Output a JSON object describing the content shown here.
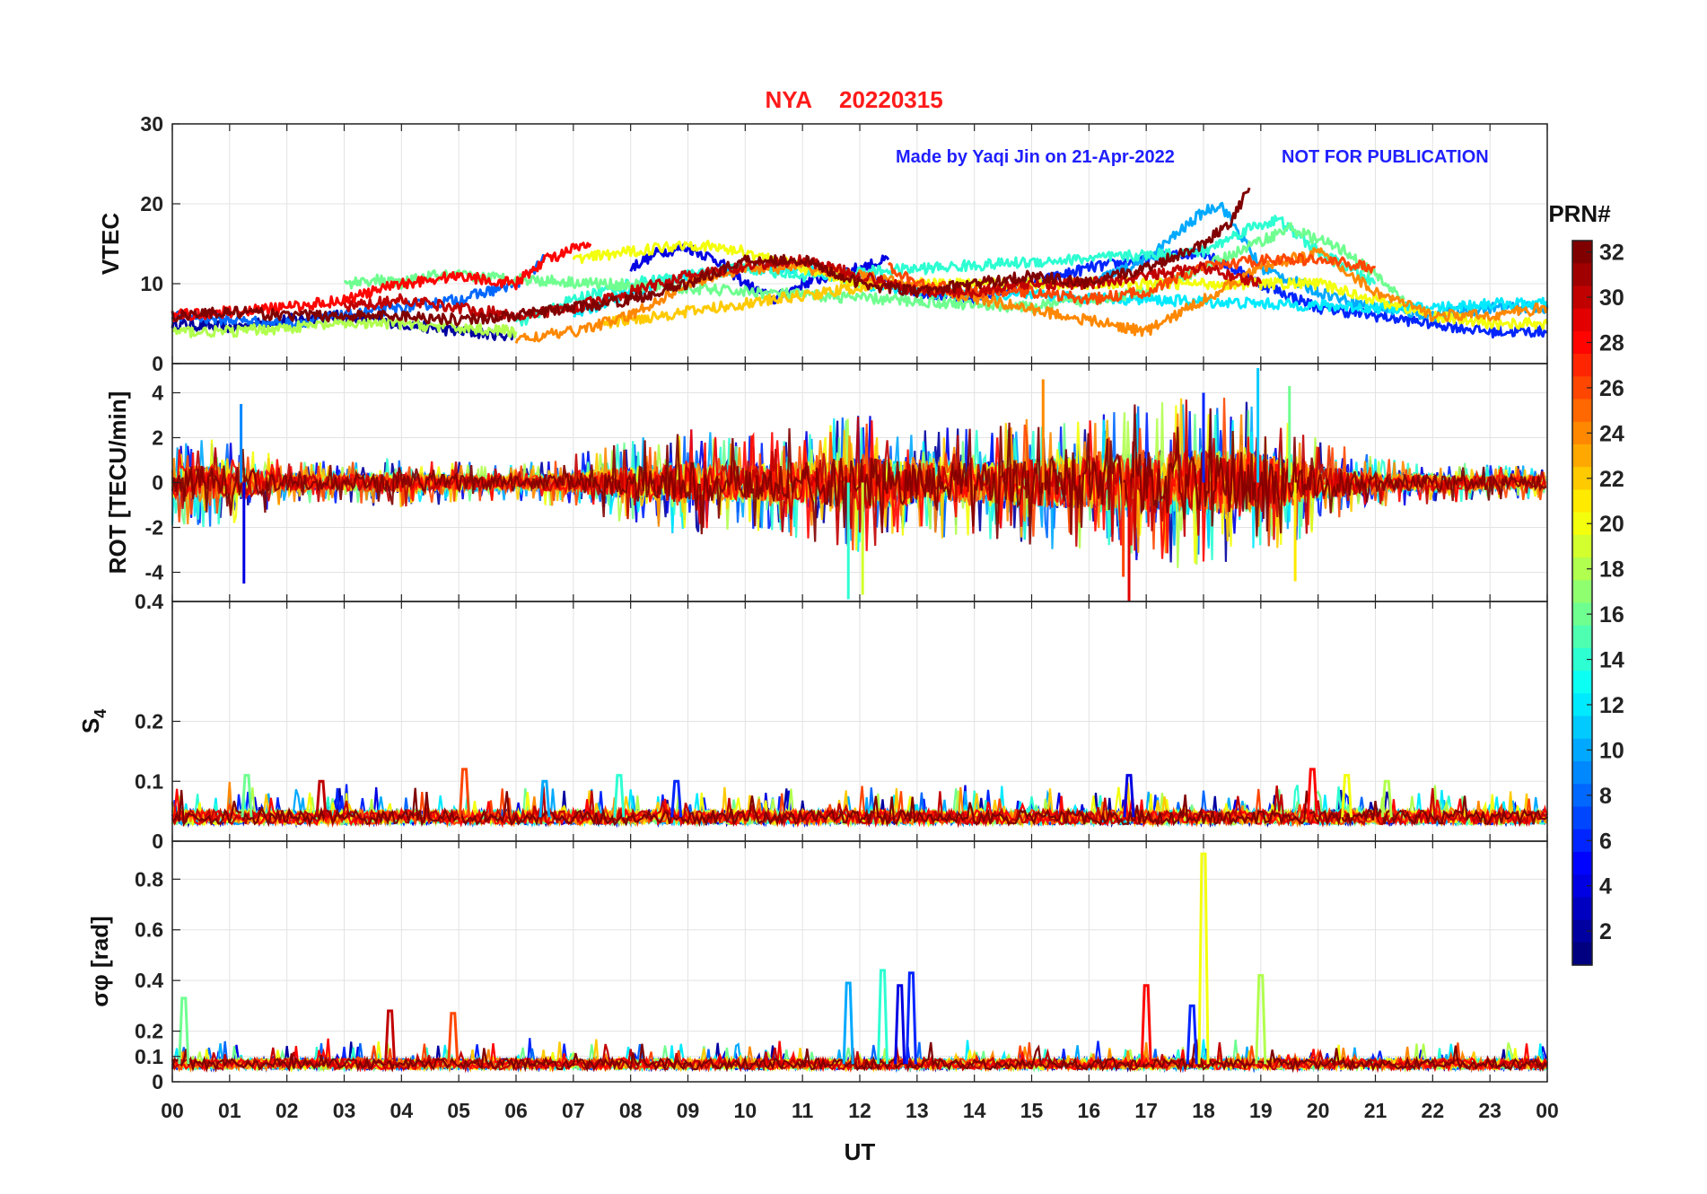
{
  "figure": {
    "title_station": "NYA",
    "title_date": "20220315",
    "title_color": "#ff1a1a",
    "credit": "Made by Yaqi Jin on 21-Apr-2022",
    "notice": "NOT FOR PUBLICATION",
    "credit_color": "#1f1fff",
    "xlabel": "UT",
    "x_tick_labels": [
      "00",
      "01",
      "02",
      "03",
      "04",
      "05",
      "06",
      "07",
      "08",
      "09",
      "10",
      "11",
      "12",
      "13",
      "14",
      "15",
      "16",
      "17",
      "18",
      "19",
      "20",
      "21",
      "22",
      "23",
      "00"
    ]
  },
  "colorbar": {
    "label": "PRN#",
    "range": [
      1,
      32
    ],
    "tick_values": [
      2,
      4,
      6,
      8,
      10,
      12,
      14,
      16,
      18,
      20,
      22,
      24,
      26,
      28,
      30,
      32
    ],
    "tick_labels": [
      "2",
      "4",
      "6",
      "8",
      "10",
      "12",
      "14",
      "16",
      "18",
      "20",
      "22",
      "24",
      "26",
      "28",
      "30",
      "32"
    ],
    "colormap": "jet"
  },
  "chart_data": [
    {
      "type": "line",
      "panel": "vtec",
      "ylabel": "VTEC",
      "ylim": [
        0,
        30
      ],
      "xlim": [
        0,
        24
      ],
      "yticks": [
        0,
        10,
        20,
        30
      ],
      "ytick_labels": [
        "0",
        "10",
        "20",
        "30"
      ],
      "grid": true,
      "series": [
        {
          "prn": 2,
          "x": [
            0,
            1,
            2,
            3,
            4,
            5,
            6
          ],
          "y": [
            5,
            4.5,
            5.5,
            6,
            5,
            4,
            3.5
          ]
        },
        {
          "prn": 4,
          "x": [
            8,
            8.5,
            9,
            9.5,
            10,
            10.5,
            11,
            12,
            12.5
          ],
          "y": [
            12,
            14,
            14.5,
            13,
            10,
            8,
            10,
            12,
            13
          ]
        },
        {
          "prn": 6,
          "x": [
            12,
            13,
            14,
            15,
            16,
            17,
            18,
            19,
            20,
            21,
            22,
            23,
            24
          ],
          "y": [
            11,
            9,
            8,
            10,
            12,
            13,
            14,
            10,
            7,
            6,
            5,
            4,
            4
          ]
        },
        {
          "prn": 8,
          "x": [
            0,
            2,
            4,
            5,
            6,
            6.5
          ],
          "y": [
            6,
            5,
            7,
            8,
            10,
            13
          ]
        },
        {
          "prn": 10,
          "x": [
            16,
            17,
            17.5,
            18,
            18.3,
            19,
            20,
            21,
            22,
            23,
            24
          ],
          "y": [
            10,
            13,
            16,
            19,
            20,
            12,
            9,
            7,
            6,
            7,
            7
          ]
        },
        {
          "prn": 12,
          "x": [
            7,
            8,
            9,
            10,
            11,
            12,
            13,
            21,
            22,
            23,
            24
          ],
          "y": [
            6,
            9,
            11,
            12,
            12,
            10,
            9,
            7,
            7,
            7.5,
            7.5
          ]
        },
        {
          "prn": 14,
          "x": [
            6,
            7,
            8,
            9,
            10,
            11,
            18,
            18.8,
            19.3,
            20,
            21
          ],
          "y": [
            5,
            8,
            10,
            11,
            12,
            11,
            14,
            17,
            18,
            14,
            10
          ]
        },
        {
          "prn": 16,
          "x": [
            3,
            3.5,
            4,
            4.5,
            5,
            15,
            16,
            17,
            18,
            19.5,
            20.5,
            21.5
          ],
          "y": [
            10,
            10.5,
            10,
            11,
            11,
            7,
            8,
            9,
            12,
            17,
            14,
            8
          ]
        },
        {
          "prn": 18,
          "x": [
            0,
            1,
            2,
            3,
            4,
            5,
            6
          ],
          "y": [
            4,
            4,
            4.5,
            5,
            5,
            4.5,
            4
          ]
        },
        {
          "prn": 20,
          "x": [
            7,
            8,
            9,
            10,
            11,
            12,
            20,
            21,
            22,
            23,
            24
          ],
          "y": [
            13,
            14,
            15,
            14,
            12,
            10,
            10,
            8,
            6,
            5,
            5
          ]
        },
        {
          "prn": 22,
          "x": [
            7.5,
            8.5,
            9.5,
            10.5,
            11.5,
            12.5
          ],
          "y": [
            5,
            6,
            7,
            8,
            9,
            10
          ]
        },
        {
          "prn": 24,
          "x": [
            6,
            7,
            8,
            9,
            10,
            11,
            12,
            17,
            18,
            19,
            20,
            21,
            22,
            23,
            24
          ],
          "y": [
            3,
            4,
            6,
            10,
            12,
            12,
            11,
            4,
            8,
            12,
            14,
            9,
            6,
            6,
            7
          ]
        },
        {
          "prn": 26,
          "x": [
            12.5,
            13,
            14,
            15,
            16,
            17,
            18,
            19,
            20,
            21
          ],
          "y": [
            12,
            10,
            9,
            9,
            8,
            9,
            12,
            13,
            13,
            12
          ]
        },
        {
          "prn": 28,
          "x": [
            0,
            1,
            2,
            3,
            4,
            5,
            6,
            6.5,
            7.3
          ],
          "y": [
            6,
            6.5,
            7,
            8,
            10,
            11,
            10,
            13,
            15
          ]
        },
        {
          "prn": 30,
          "x": [
            3,
            4,
            5,
            6,
            7,
            8,
            9,
            10,
            11,
            12,
            13,
            14,
            15,
            16,
            17,
            18,
            19
          ],
          "y": [
            7,
            8,
            7,
            6,
            7,
            9,
            11,
            12,
            13,
            11,
            9,
            9,
            10,
            10,
            11,
            12,
            10
          ]
        },
        {
          "prn": 32,
          "x": [
            0,
            1,
            2,
            3,
            4,
            5,
            6,
            7,
            8,
            9,
            10,
            11,
            12,
            13,
            14,
            15,
            16,
            17,
            18,
            18.5,
            18.8
          ],
          "y": [
            6,
            6.5,
            6,
            6,
            6,
            5.5,
            6,
            7,
            8,
            10,
            13,
            13,
            10,
            9,
            10,
            11,
            10,
            12,
            15,
            18,
            22
          ]
        }
      ]
    },
    {
      "type": "line",
      "panel": "rot",
      "ylabel": "ROT [TECU/min]",
      "ylim": [
        -5.3,
        5.3
      ],
      "xlim": [
        0,
        24
      ],
      "yticks": [
        -4,
        -2,
        0,
        2,
        4
      ],
      "ytick_labels": [
        "-4",
        "-2",
        "0",
        "2",
        "4"
      ],
      "grid": true,
      "noise_envelope": {
        "x": [
          0,
          1,
          2,
          3,
          4,
          5,
          6,
          7,
          8,
          9,
          10,
          11,
          12,
          13,
          14,
          15,
          16,
          17,
          18,
          19,
          20,
          21,
          22,
          23,
          24
        ],
        "amplitude": [
          1.2,
          1.3,
          0.6,
          0.6,
          0.7,
          0.6,
          0.5,
          0.8,
          1.2,
          1.5,
          1.3,
          1.6,
          2.0,
          1.6,
          1.5,
          1.8,
          2.0,
          2.3,
          2.5,
          2.2,
          1.3,
          0.7,
          0.6,
          0.5,
          0.5
        ]
      },
      "spikes": [
        {
          "x": 1.25,
          "y": -4.5
        },
        {
          "x": 1.2,
          "y": 3.5
        },
        {
          "x": 11.8,
          "y": -5.2
        },
        {
          "x": 12.05,
          "y": -5.0
        },
        {
          "x": 15.2,
          "y": 4.6
        },
        {
          "x": 16.7,
          "y": -5.3
        },
        {
          "x": 18.0,
          "y": 4.0
        },
        {
          "x": 18.95,
          "y": 5.1
        },
        {
          "x": 19.5,
          "y": 4.3
        },
        {
          "x": 19.6,
          "y": -4.4
        },
        {
          "x": 16.6,
          "y": -4.2
        }
      ]
    },
    {
      "type": "line",
      "panel": "s4",
      "ylabel": "S4",
      "ylim": [
        0,
        0.4
      ],
      "xlim": [
        0,
        24
      ],
      "yticks": [
        0,
        0.1,
        0.2,
        0.4
      ],
      "ytick_labels": [
        "0",
        "0.1",
        "0.2",
        "0.4"
      ],
      "grid": true,
      "baseline": 0.04,
      "spikes": [
        {
          "x": 1.3,
          "y": 0.11
        },
        {
          "x": 2.6,
          "y": 0.1
        },
        {
          "x": 5.1,
          "y": 0.12
        },
        {
          "x": 6.5,
          "y": 0.1
        },
        {
          "x": 7.8,
          "y": 0.11
        },
        {
          "x": 8.8,
          "y": 0.1
        },
        {
          "x": 16.7,
          "y": 0.11
        },
        {
          "x": 19.9,
          "y": 0.12
        },
        {
          "x": 20.5,
          "y": 0.11
        },
        {
          "x": 21.2,
          "y": 0.1
        }
      ]
    },
    {
      "type": "line",
      "panel": "sigma_phi",
      "ylabel": "σφ [rad]",
      "ylim": [
        0,
        0.95
      ],
      "xlim": [
        0,
        24
      ],
      "yticks": [
        0,
        0.1,
        0.2,
        0.4,
        0.6,
        0.8
      ],
      "ytick_labels": [
        "0",
        "0.1",
        "0.2",
        "0.4",
        "0.6",
        "0.8"
      ],
      "grid": true,
      "baseline": 0.07,
      "spikes": [
        {
          "x": 0.2,
          "y": 0.33
        },
        {
          "x": 3.8,
          "y": 0.28
        },
        {
          "x": 4.9,
          "y": 0.27
        },
        {
          "x": 11.8,
          "y": 0.39
        },
        {
          "x": 12.4,
          "y": 0.44
        },
        {
          "x": 12.9,
          "y": 0.43
        },
        {
          "x": 12.7,
          "y": 0.38
        },
        {
          "x": 17.0,
          "y": 0.38
        },
        {
          "x": 18.0,
          "y": 0.9
        },
        {
          "x": 19.0,
          "y": 0.42
        },
        {
          "x": 17.8,
          "y": 0.3
        }
      ]
    }
  ]
}
